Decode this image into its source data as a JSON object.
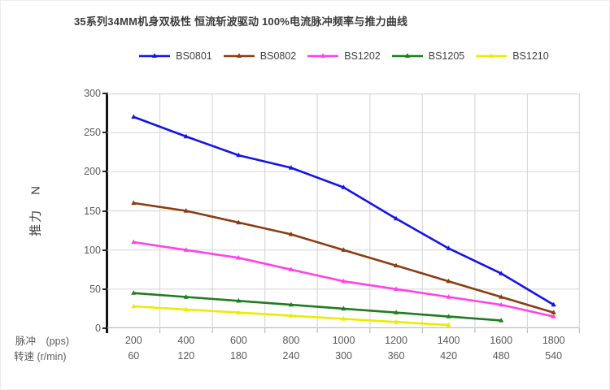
{
  "chart_data": {
    "type": "line",
    "title": "35系列34MM机身双极性 恒流斩波驱动 100%电流脉冲频率与推力曲线",
    "ylabel": "推力　N",
    "y_axis": {
      "min": 0,
      "max": 300,
      "step": 50
    },
    "x_axis": {
      "row1": {
        "label": "脉冲　(pps)",
        "ticks": [
          "200",
          "400",
          "600",
          "800",
          "1000",
          "1200",
          "1400",
          "1600",
          "1800"
        ]
      },
      "row2": {
        "label": "转速 (r/min)",
        "ticks": [
          "60",
          "120",
          "180",
          "240",
          "300",
          "360",
          "420",
          "480",
          "540"
        ]
      }
    },
    "series": [
      {
        "name": "BS0801",
        "color": "#1414e6",
        "values": [
          270,
          245,
          221,
          205,
          180,
          140,
          102,
          70,
          30
        ]
      },
      {
        "name": "BS0802",
        "color": "#8b3c10",
        "values": [
          160,
          150,
          135,
          120,
          100,
          80,
          60,
          40,
          20
        ]
      },
      {
        "name": "BS1202",
        "color": "#ff41eb",
        "values": [
          110,
          100,
          90,
          75,
          60,
          50,
          40,
          30,
          15
        ]
      },
      {
        "name": "BS1205",
        "color": "#1e7d1e",
        "values": [
          45,
          40,
          35,
          30,
          25,
          20,
          15,
          10
        ]
      },
      {
        "name": "BS1210",
        "color": "#ebeb00",
        "values": [
          28,
          24,
          20,
          16,
          12,
          8,
          4
        ]
      }
    ],
    "grid": true,
    "legend_position": "top",
    "marker": "triangle-up",
    "colors": {
      "gridline": "#d9d9d9",
      "bottom_axis": "#bfbfbf",
      "left_axis": "#141414",
      "tick_label": "#595959",
      "title_text": "#3b3b3b"
    }
  }
}
